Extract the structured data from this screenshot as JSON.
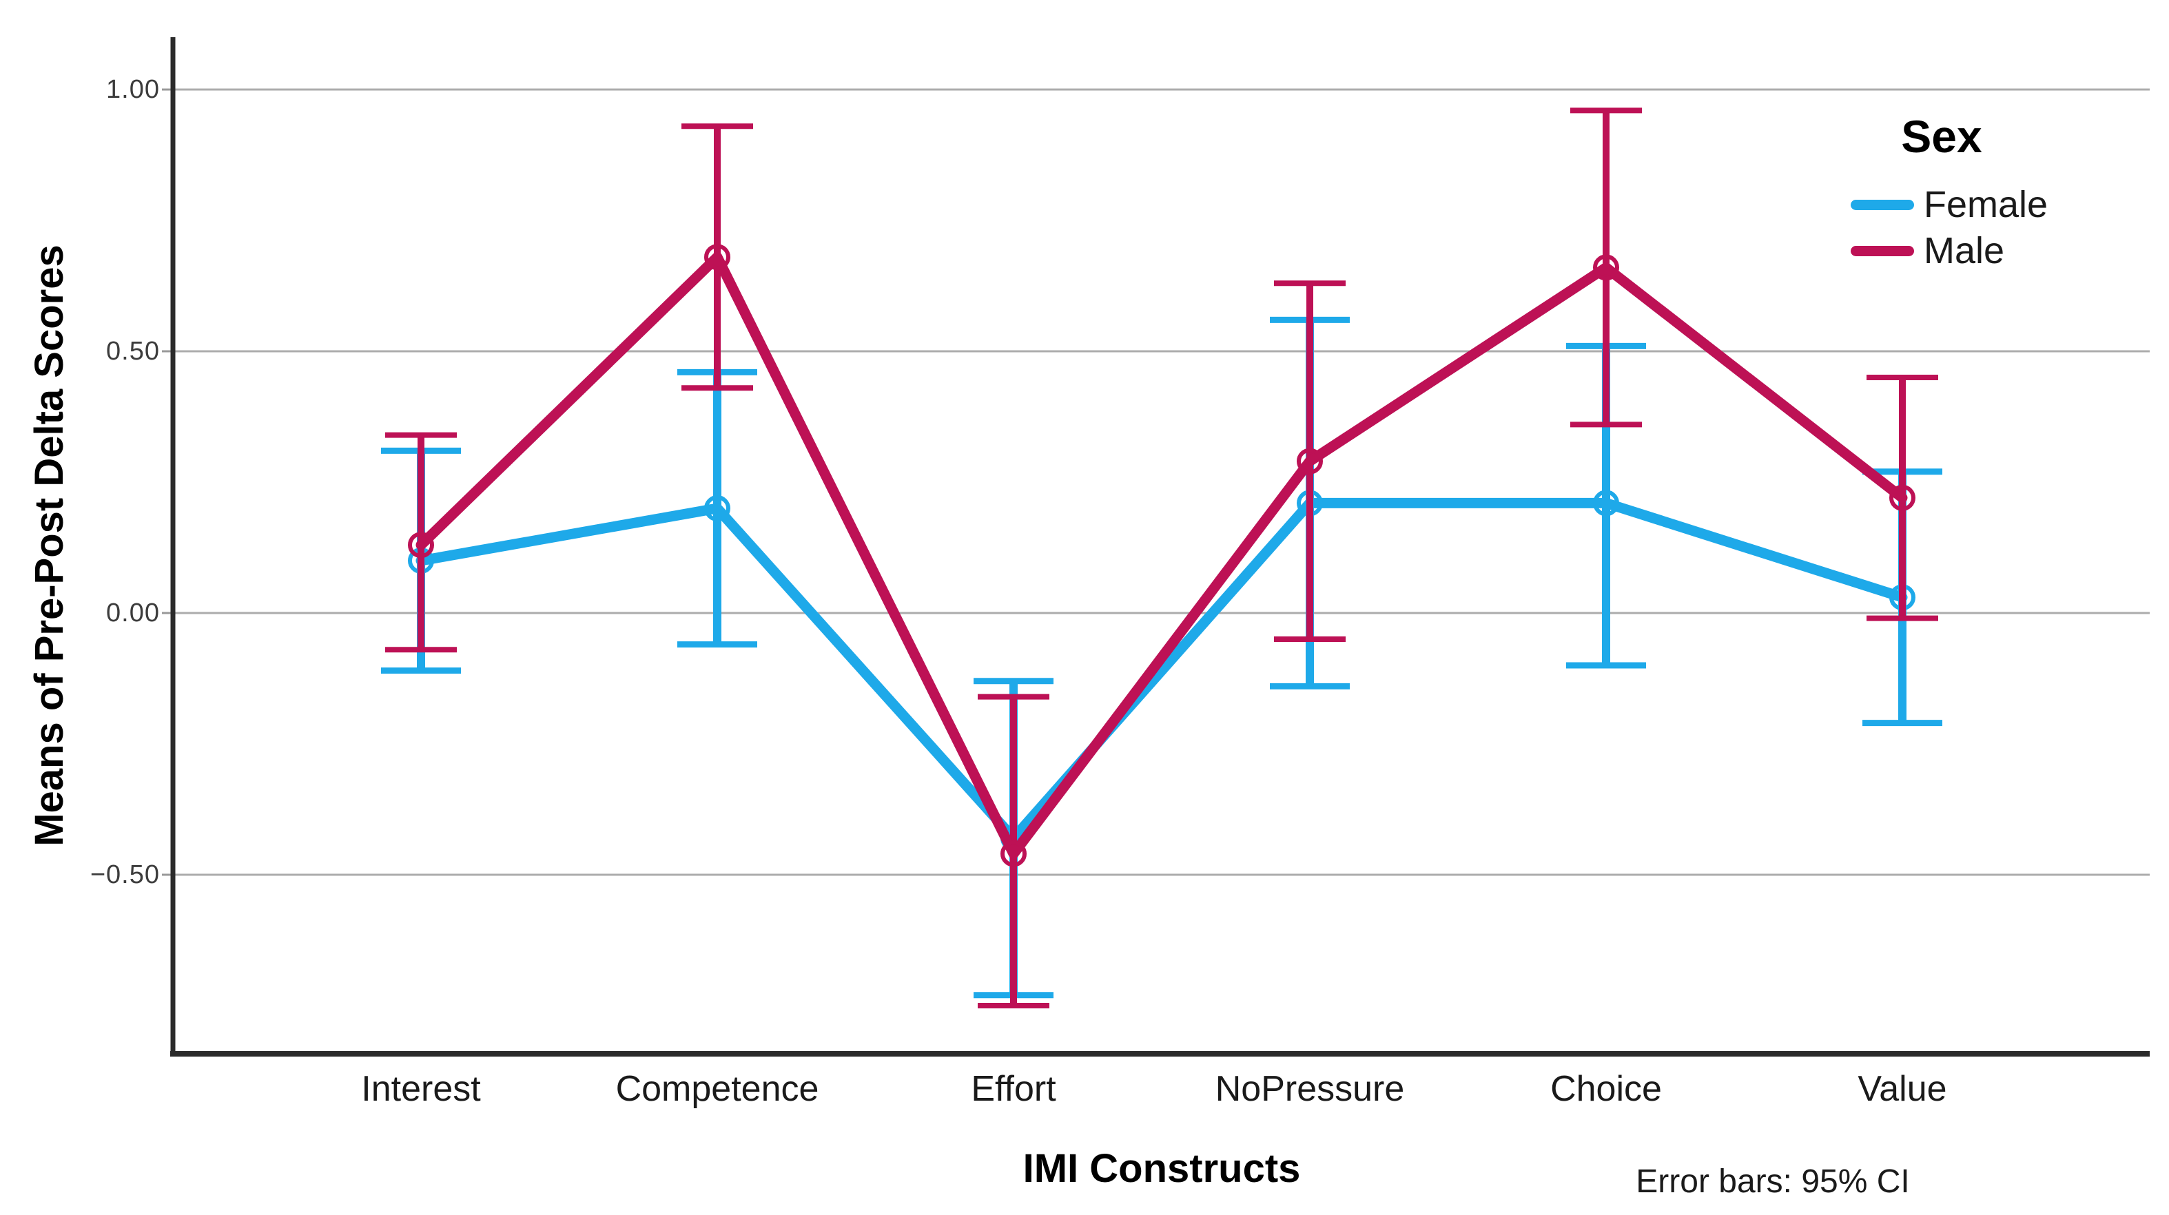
{
  "chart_data": {
    "type": "line",
    "title": "",
    "xlabel": "IMI Constructs",
    "ylabel": "Means of Pre-Post Delta Scores",
    "footnote": "Error bars: 95% CI",
    "legend_title": "Sex",
    "legend_position": "top-right-inside",
    "grid": "horizontal-only",
    "categories": [
      "Interest",
      "Competence",
      "Effort",
      "NoPressure",
      "Choice",
      "Value"
    ],
    "yticks": [
      1.0,
      0.5,
      0.0,
      -0.5
    ],
    "ytick_labels": [
      "1.00",
      "0.50",
      "0.00",
      "−0.50"
    ],
    "ylim": [
      -0.84,
      1.1
    ],
    "error_bar_meaning": "95% confidence interval",
    "marker": "open-circle",
    "series": [
      {
        "name": "Female",
        "color": "#1EA9E9",
        "means": [
          0.1,
          0.2,
          -0.43,
          0.21,
          0.21,
          0.03
        ],
        "ci_low": [
          -0.11,
          -0.06,
          -0.73,
          -0.14,
          -0.1,
          -0.21
        ],
        "ci_high": [
          0.31,
          0.46,
          -0.13,
          0.56,
          0.51,
          0.27
        ]
      },
      {
        "name": "Male",
        "color": "#BD1155",
        "means": [
          0.13,
          0.68,
          -0.46,
          0.29,
          0.66,
          0.22
        ],
        "ci_low": [
          -0.07,
          0.43,
          -0.75,
          -0.05,
          0.36,
          -0.01
        ],
        "ci_high": [
          0.34,
          0.93,
          -0.16,
          0.63,
          0.96,
          0.45
        ]
      }
    ],
    "colors": {
      "gridline": "#ACACAC",
      "axis": "#2B2B2B",
      "tick_label": "#3C3C3C",
      "background": "#FFFFFF"
    }
  }
}
